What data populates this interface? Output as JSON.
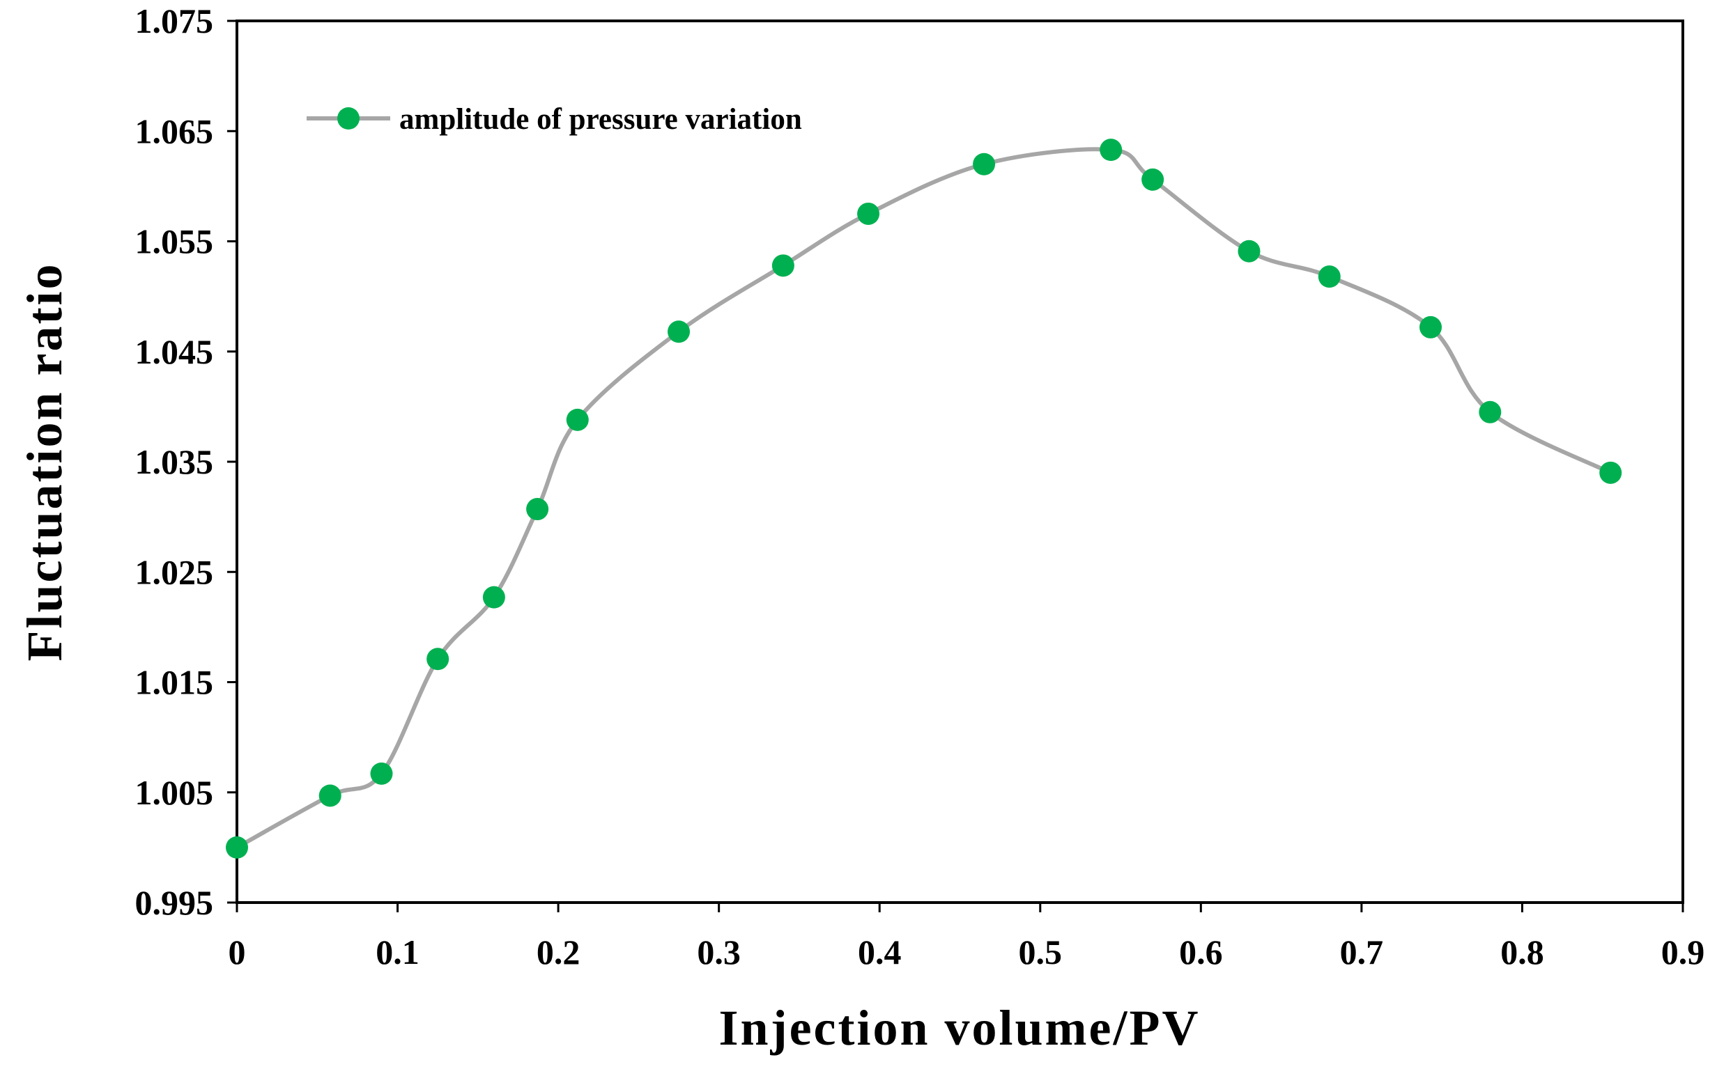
{
  "chart_data": {
    "type": "line",
    "title": "",
    "xlabel": "Injection volume/PV",
    "ylabel": "Fluctuation ratio",
    "xlim": [
      0,
      0.9
    ],
    "ylim": [
      0.995,
      1.075
    ],
    "xticks": [
      0,
      0.1,
      0.2,
      0.3,
      0.4,
      0.5,
      0.6,
      0.7,
      0.8,
      0.9
    ],
    "xtick_labels": [
      "0",
      "0.1",
      "0.2",
      "0.3",
      "0.4",
      "0.5",
      "0.6",
      "0.7",
      "0.8",
      "0.9"
    ],
    "yticks": [
      0.995,
      1.005,
      1.015,
      1.025,
      1.035,
      1.045,
      1.055,
      1.065,
      1.075
    ],
    "ytick_labels": [
      "0.995",
      "1.005",
      "1.015",
      "1.025",
      "1.035",
      "1.045",
      "1.055",
      "1.065",
      "1.075"
    ],
    "grid": false,
    "legend_position": "top-left",
    "series": [
      {
        "name": "amplitude of pressure variation",
        "line_color": "#a6a6a6",
        "marker_color": "#00b050",
        "smooth": true,
        "x": [
          0,
          0.058,
          0.09,
          0.125,
          0.16,
          0.187,
          0.212,
          0.275,
          0.34,
          0.393,
          0.465,
          0.544,
          0.57,
          0.63,
          0.68,
          0.743,
          0.78,
          0.855
        ],
        "y": [
          1.0,
          1.0047,
          1.0067,
          1.0171,
          1.0227,
          1.0307,
          1.0388,
          1.0468,
          1.0528,
          1.0575,
          1.062,
          1.0633,
          1.0606,
          1.0541,
          1.0518,
          1.0472,
          1.0395,
          1.034
        ]
      }
    ]
  }
}
